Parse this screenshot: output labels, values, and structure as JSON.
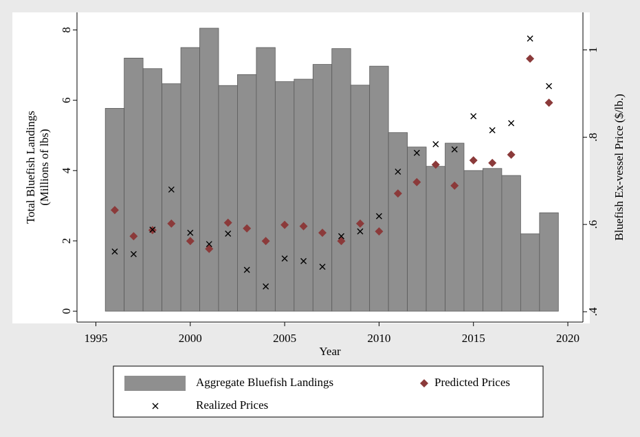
{
  "chart_data": {
    "type": "combo",
    "ylabel": [
      "Total Bluefish Landings",
      "(Millions of lbs)"
    ],
    "y2label": "Bluefish Ex-vessel Price ($/lb.)",
    "xlabel": "Year",
    "x": [
      1996,
      1997,
      1998,
      1999,
      2000,
      2001,
      2002,
      2003,
      2004,
      2005,
      2006,
      2007,
      2008,
      2009,
      2010,
      2011,
      2012,
      2013,
      2014,
      2015,
      2016,
      2017,
      2018,
      2019
    ],
    "xlim": [
      1994.0,
      2020.8
    ],
    "xticks": [
      1995,
      2000,
      2005,
      2010,
      2015,
      2020
    ],
    "ylim": [
      -0.31,
      8.5
    ],
    "yticks": [
      0,
      2,
      4,
      6,
      8
    ],
    "y2lim": [
      0.3763,
      1.086
    ],
    "y2ticks": [
      {
        "value": 0.4,
        "label": ".4"
      },
      {
        "value": 0.6,
        "label": ".6"
      },
      {
        "value": 0.8,
        "label": ".8"
      },
      1
    ],
    "series": [
      {
        "name": "Aggregate Bluefish Landings",
        "type": "bar",
        "color": "#8f8f8f",
        "values": [
          5.77,
          7.2,
          6.9,
          6.47,
          7.5,
          8.05,
          6.42,
          6.73,
          7.5,
          6.53,
          6.6,
          7.02,
          7.47,
          6.43,
          6.97,
          5.08,
          4.67,
          4.12,
          4.78,
          4.0,
          4.06,
          3.86,
          2.2,
          2.8
        ]
      },
      {
        "name": "Predicted Prices",
        "type": "scatter",
        "marker": "diamond",
        "axis": "y2",
        "color": "#8b3a3a",
        "values": [
          0.633,
          0.573,
          0.587,
          0.602,
          0.562,
          0.544,
          0.604,
          0.591,
          0.562,
          0.599,
          0.596,
          0.581,
          0.562,
          0.602,
          0.584,
          0.671,
          0.697,
          0.737,
          0.689,
          0.747,
          0.741,
          0.76,
          0.98,
          0.879
        ]
      },
      {
        "name": "Realized Prices",
        "type": "scatter",
        "marker": "x",
        "axis": "y2",
        "color": "#000000",
        "values": [
          0.538,
          0.532,
          0.588,
          0.68,
          0.581,
          0.555,
          0.579,
          0.496,
          0.458,
          0.522,
          0.516,
          0.503,
          0.573,
          0.584,
          0.619,
          0.721,
          0.764,
          0.784,
          0.772,
          0.848,
          0.816,
          0.832,
          1.026,
          0.917
        ]
      }
    ],
    "legend": "bottom"
  }
}
